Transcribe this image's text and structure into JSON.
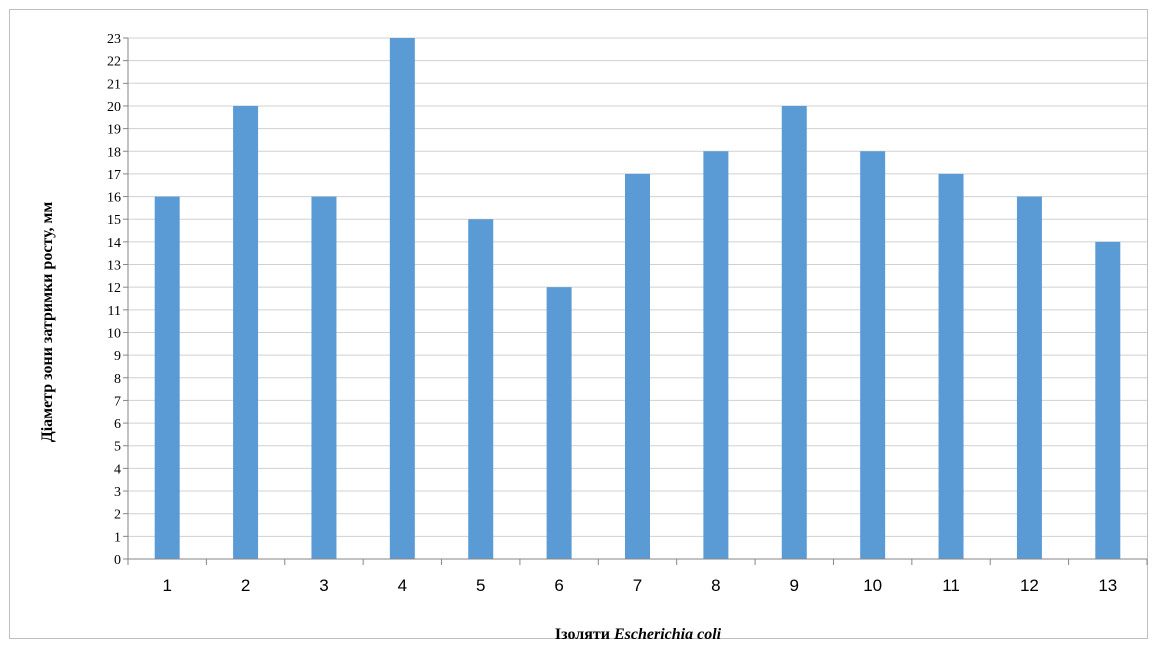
{
  "chart_data": {
    "type": "bar",
    "categories": [
      "1",
      "2",
      "3",
      "4",
      "5",
      "6",
      "7",
      "8",
      "9",
      "10",
      "11",
      "12",
      "13"
    ],
    "values": [
      16,
      20,
      16,
      23,
      15,
      12,
      17,
      18,
      20,
      18,
      17,
      16,
      14
    ],
    "ylabel": "Діаметр зони затримки росту, мм",
    "xlabel_prefix": "Ізоляти ",
    "xlabel_italic": "Escherichia coli",
    "ylim": [
      0,
      23
    ],
    "ytick_step": 1,
    "grid": true,
    "legend": "none",
    "bar_color": "#5b9bd5"
  }
}
